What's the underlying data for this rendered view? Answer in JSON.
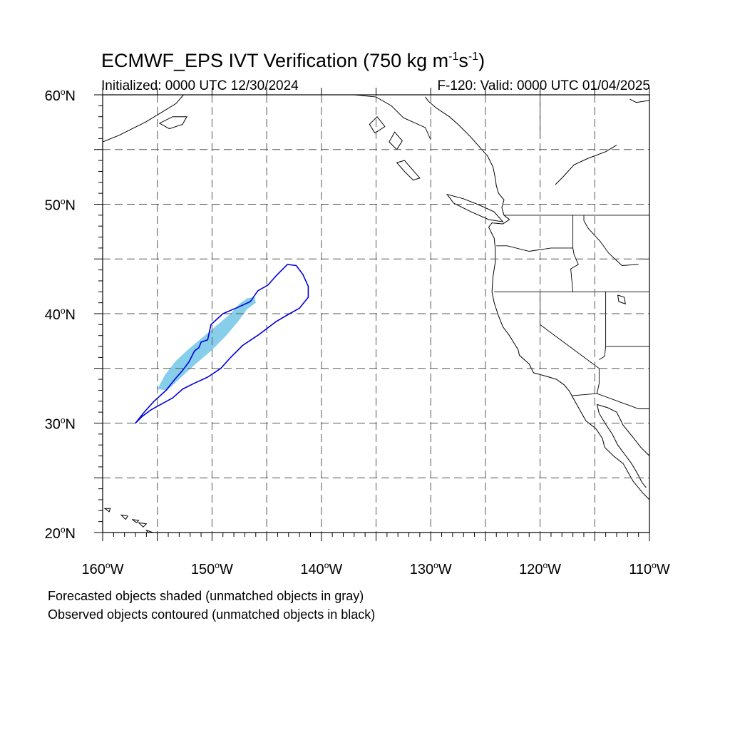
{
  "header": {
    "title_main": "ECMWF_EPS IVT Verification (750 kg m",
    "title_exp1": "-1",
    "title_mid": "s",
    "title_exp2": "-1",
    "title_end": ")",
    "initialized": "Initialized: 0000 UTC 12/30/2024",
    "valid": "F-120: Valid: 0000 UTC 01/04/2025"
  },
  "map": {
    "lon_range": [
      -160,
      -110
    ],
    "lat_range": [
      20,
      60
    ],
    "lon_ticks": [
      {
        "value": -160,
        "deg": "160",
        "hemi": "W"
      },
      {
        "value": -150,
        "deg": "150",
        "hemi": "W"
      },
      {
        "value": -140,
        "deg": "140",
        "hemi": "W"
      },
      {
        "value": -130,
        "deg": "130",
        "hemi": "W"
      },
      {
        "value": -120,
        "deg": "120",
        "hemi": "W"
      },
      {
        "value": -110,
        "deg": "110",
        "hemi": "W"
      }
    ],
    "lat_ticks": [
      {
        "value": 60,
        "deg": "60",
        "hemi": "N"
      },
      {
        "value": 50,
        "deg": "50",
        "hemi": "N"
      },
      {
        "value": 40,
        "deg": "40",
        "hemi": "N"
      },
      {
        "value": 30,
        "deg": "30",
        "hemi": "N"
      },
      {
        "value": 20,
        "deg": "20",
        "hemi": "N"
      }
    ],
    "grid_lon_step": 5,
    "grid_lat_step": 5,
    "grid_style": "dashed",
    "colors": {
      "forecast_fill": "#87ceeb",
      "observed_contour": "#0000dd",
      "coastline": "#000000",
      "grid": "#555555"
    },
    "forecast_object": [
      [
        -155,
        33.1
      ],
      [
        -154.3,
        34.4
      ],
      [
        -153.3,
        35.7
      ],
      [
        -152.1,
        36.8
      ],
      [
        -150.9,
        37.8
      ],
      [
        -149.6,
        38.9
      ],
      [
        -148.3,
        40.0
      ],
      [
        -147.5,
        40.9
      ],
      [
        -146.8,
        41.4
      ],
      [
        -146.1,
        41.5
      ],
      [
        -146.0,
        41.0
      ],
      [
        -146.8,
        40.4
      ],
      [
        -147.6,
        39.3
      ],
      [
        -148.7,
        38.0
      ],
      [
        -150.1,
        36.6
      ],
      [
        -151.5,
        35.4
      ],
      [
        -152.8,
        34.2
      ],
      [
        -154.1,
        33.0
      ]
    ],
    "observed_object": [
      [
        -157.0,
        30.0
      ],
      [
        -156.4,
        30.6
      ],
      [
        -155.6,
        31.2
      ],
      [
        -154.7,
        31.7
      ],
      [
        -153.6,
        32.3
      ],
      [
        -152.7,
        33.1
      ],
      [
        -151.7,
        33.6
      ],
      [
        -150.4,
        34.2
      ],
      [
        -149.2,
        35.0
      ],
      [
        -148.3,
        36.0
      ],
      [
        -147.2,
        37.1
      ],
      [
        -145.7,
        38.1
      ],
      [
        -144.1,
        39.3
      ],
      [
        -142.9,
        40.0
      ],
      [
        -142.0,
        40.5
      ],
      [
        -141.2,
        41.5
      ],
      [
        -141.2,
        42.5
      ],
      [
        -141.7,
        43.6
      ],
      [
        -142.3,
        44.4
      ],
      [
        -143.1,
        44.5
      ],
      [
        -144.1,
        43.5
      ],
      [
        -144.9,
        42.6
      ],
      [
        -145.8,
        42.1
      ],
      [
        -146.5,
        41.1
      ],
      [
        -147.6,
        40.6
      ],
      [
        -149.0,
        40.0
      ],
      [
        -150.1,
        39.0
      ],
      [
        -150.4,
        37.6
      ],
      [
        -151.0,
        37.4
      ],
      [
        -151.2,
        36.9
      ],
      [
        -151.6,
        36.6
      ],
      [
        -152.1,
        35.6
      ],
      [
        -152.7,
        34.8
      ],
      [
        -153.4,
        34.0
      ],
      [
        -154.2,
        33.0
      ],
      [
        -155.3,
        32.0
      ],
      [
        -156.2,
        31.0
      ],
      [
        -157.0,
        30.0
      ]
    ],
    "west_coast": [
      [
        -130.5,
        59.8
      ],
      [
        -130.2,
        59.4
      ],
      [
        -129.5,
        58.8
      ],
      [
        -128.3,
        58.0
      ],
      [
        -127.5,
        57.3
      ],
      [
        -126.4,
        56.2
      ],
      [
        -125.6,
        55.3
      ],
      [
        -124.8,
        54.4
      ],
      [
        -124.3,
        53.4
      ],
      [
        -124.1,
        52.4
      ],
      [
        -124.0,
        51.7
      ],
      [
        -123.8,
        51.0
      ],
      [
        -123.3,
        50.4
      ],
      [
        -123.5,
        49.7
      ],
      [
        -123.3,
        49.0
      ],
      [
        -122.8,
        48.6
      ],
      [
        -123.4,
        48.2
      ],
      [
        -124.4,
        48.3
      ],
      [
        -124.7,
        47.9
      ],
      [
        -124.2,
        46.9
      ],
      [
        -124.1,
        46.0
      ],
      [
        -124.1,
        44.7
      ],
      [
        -124.3,
        43.4
      ],
      [
        -124.4,
        42.0
      ],
      [
        -124.2,
        41.0
      ],
      [
        -123.8,
        39.8
      ],
      [
        -123.4,
        38.8
      ],
      [
        -122.8,
        38.0
      ],
      [
        -122.5,
        37.5
      ],
      [
        -122.0,
        36.7
      ],
      [
        -121.9,
        36.2
      ],
      [
        -121.0,
        35.4
      ],
      [
        -120.6,
        34.6
      ],
      [
        -119.5,
        34.3
      ],
      [
        -118.5,
        34.0
      ],
      [
        -117.8,
        33.5
      ],
      [
        -117.3,
        32.9
      ],
      [
        -117.1,
        32.5
      ],
      [
        -116.7,
        31.8
      ],
      [
        -116.2,
        30.9
      ],
      [
        -115.8,
        30.2
      ],
      [
        -114.9,
        29.5
      ],
      [
        -114.3,
        28.6
      ],
      [
        -114.1,
        27.8
      ],
      [
        -113.3,
        27.0
      ],
      [
        -112.4,
        26.3
      ],
      [
        -111.9,
        25.4
      ],
      [
        -111.5,
        24.7
      ],
      [
        -110.6,
        23.6
      ],
      [
        -110.0,
        23.0
      ]
    ],
    "baja_gulf": [
      [
        -114.8,
        31.7
      ],
      [
        -114.6,
        30.9
      ],
      [
        -114.0,
        29.9
      ],
      [
        -113.4,
        29.0
      ],
      [
        -112.9,
        28.0
      ],
      [
        -112.3,
        27.2
      ],
      [
        -111.7,
        26.4
      ],
      [
        -111.1,
        25.4
      ],
      [
        -110.7,
        24.6
      ],
      [
        -110.3,
        24.1
      ]
    ],
    "mainland_gulf": [
      [
        -114.8,
        31.7
      ],
      [
        -113.8,
        31.4
      ],
      [
        -113.0,
        31.0
      ],
      [
        -112.4,
        29.8
      ],
      [
        -111.5,
        28.7
      ],
      [
        -110.8,
        27.8
      ],
      [
        -110.0,
        27.0
      ]
    ],
    "alaska_coast": [
      [
        -160.0,
        55.7
      ],
      [
        -158.5,
        56.3
      ],
      [
        -157.3,
        56.9
      ],
      [
        -156.1,
        57.5
      ],
      [
        -154.6,
        58.4
      ],
      [
        -153.3,
        59.2
      ],
      [
        -152.6,
        60.0
      ]
    ],
    "kodiak": [
      [
        -154.8,
        57.4
      ],
      [
        -153.6,
        58.0
      ],
      [
        -152.3,
        58.0
      ],
      [
        -152.7,
        57.3
      ],
      [
        -153.9,
        56.9
      ],
      [
        -154.8,
        57.4
      ]
    ],
    "panhandle_islands": [
      [
        [
          -134.9,
          58.0
        ],
        [
          -134.2,
          57.1
        ],
        [
          -135.1,
          56.5
        ],
        [
          -135.6,
          57.3
        ],
        [
          -134.9,
          58.0
        ]
      ],
      [
        [
          -133.3,
          56.6
        ],
        [
          -132.6,
          55.8
        ],
        [
          -133.1,
          55.0
        ],
        [
          -133.8,
          55.7
        ],
        [
          -133.3,
          56.6
        ]
      ],
      [
        [
          -132.4,
          54.0
        ],
        [
          -131.7,
          53.2
        ],
        [
          -131.0,
          52.4
        ],
        [
          -131.6,
          52.2
        ],
        [
          -132.4,
          53.0
        ],
        [
          -133.1,
          53.8
        ],
        [
          -132.4,
          54.0
        ]
      ],
      [
        [
          -128.5,
          50.9
        ],
        [
          -127.0,
          50.5
        ],
        [
          -125.5,
          49.9
        ],
        [
          -124.2,
          49.3
        ],
        [
          -123.4,
          48.4
        ],
        [
          -124.7,
          48.6
        ],
        [
          -126.3,
          49.3
        ],
        [
          -127.9,
          50.1
        ],
        [
          -128.5,
          50.9
        ]
      ]
    ],
    "canada_coast_east": [
      [
        -110.0,
        59.5
      ],
      [
        -111.2,
        59.3
      ],
      [
        -111.8,
        59.6
      ]
    ],
    "hawaii_islands": [
      [
        [
          -159.8,
          22.2
        ],
        [
          -159.3,
          22.2
        ],
        [
          -159.4,
          21.9
        ],
        [
          -159.8,
          22.2
        ]
      ],
      [
        [
          -158.3,
          21.6
        ],
        [
          -157.7,
          21.5
        ],
        [
          -157.9,
          21.2
        ],
        [
          -158.3,
          21.6
        ]
      ],
      [
        [
          -157.3,
          21.2
        ],
        [
          -156.7,
          21.1
        ],
        [
          -156.9,
          20.9
        ],
        [
          -157.3,
          21.2
        ]
      ],
      [
        [
          -156.7,
          20.9
        ],
        [
          -156.0,
          20.8
        ],
        [
          -156.3,
          20.5
        ],
        [
          -156.7,
          20.9
        ]
      ],
      [
        [
          -156.0,
          20.2
        ],
        [
          -155.1,
          19.9
        ],
        [
          -155.5,
          19.5
        ],
        [
          -156.0,
          20.2
        ]
      ]
    ],
    "borders": [
      [
        [
          -123.3,
          49.0
        ],
        [
          -110.0,
          49.0
        ]
      ],
      [
        [
          -124.2,
          42.0
        ],
        [
          -110.0,
          42.0
        ]
      ],
      [
        [
          -124.0,
          46.2
        ],
        [
          -123.0,
          46.2
        ],
        [
          -121.0,
          45.7
        ],
        [
          -119.0,
          46.0
        ],
        [
          -117.0,
          46.0
        ],
        [
          -117.0,
          49.0
        ]
      ],
      [
        [
          -117.0,
          46.0
        ],
        [
          -116.9,
          45.4
        ],
        [
          -116.5,
          44.5
        ],
        [
          -117.2,
          44.1
        ],
        [
          -117.0,
          42.0
        ]
      ],
      [
        [
          -120.0,
          42.0
        ],
        [
          -120.0,
          39.0
        ],
        [
          -114.6,
          35.0
        ],
        [
          -114.6,
          33.6
        ],
        [
          -114.8,
          32.7
        ]
      ],
      [
        [
          -114.0,
          42.0
        ],
        [
          -114.0,
          37.0
        ],
        [
          -114.1,
          36.1
        ],
        [
          -114.6,
          35.8
        ]
      ],
      [
        [
          -114.0,
          37.0
        ],
        [
          -110.0,
          37.0
        ]
      ],
      [
        [
          -111.0,
          45.0
        ],
        [
          -110.0,
          45.0
        ]
      ],
      [
        [
          -117.1,
          32.5
        ],
        [
          -114.8,
          32.7
        ],
        [
          -111.0,
          31.3
        ],
        [
          -110.0,
          31.3
        ]
      ],
      [
        [
          -116.0,
          49.0
        ],
        [
          -116.0,
          48.5
        ],
        [
          -115.6,
          47.8
        ],
        [
          -114.5,
          46.6
        ],
        [
          -113.7,
          45.5
        ],
        [
          -112.5,
          44.4
        ],
        [
          -111.0,
          44.5
        ]
      ],
      [
        [
          -120.0,
          56.0
        ],
        [
          -120.0,
          60.0
        ]
      ],
      [
        [
          -130.0,
          55.9
        ],
        [
          -130.5,
          57.0
        ],
        [
          -132.5,
          57.9
        ],
        [
          -133.6,
          59.0
        ],
        [
          -135.0,
          59.8
        ],
        [
          -137.0,
          60.0
        ]
      ],
      [
        [
          -141.0,
          60.0
        ],
        [
          -141.0,
          60.0
        ]
      ]
    ],
    "lakes": [
      [
        [
          -112.9,
          41.7
        ],
        [
          -112.3,
          41.5
        ],
        [
          -112.2,
          40.9
        ],
        [
          -112.8,
          41.1
        ],
        [
          -112.9,
          41.7
        ]
      ],
      [
        [
          -118.6,
          51.8
        ],
        [
          -117.9,
          52.5
        ],
        [
          -116.9,
          53.6
        ],
        [
          -115.6,
          54.2
        ],
        [
          -114.0,
          54.8
        ],
        [
          -113.0,
          55.4
        ]
      ]
    ]
  },
  "notes": {
    "forecast": "Forecasted objects shaded (unmatched objects in gray)",
    "observed": "Observed objects contoured (unmatched objects in black)"
  }
}
